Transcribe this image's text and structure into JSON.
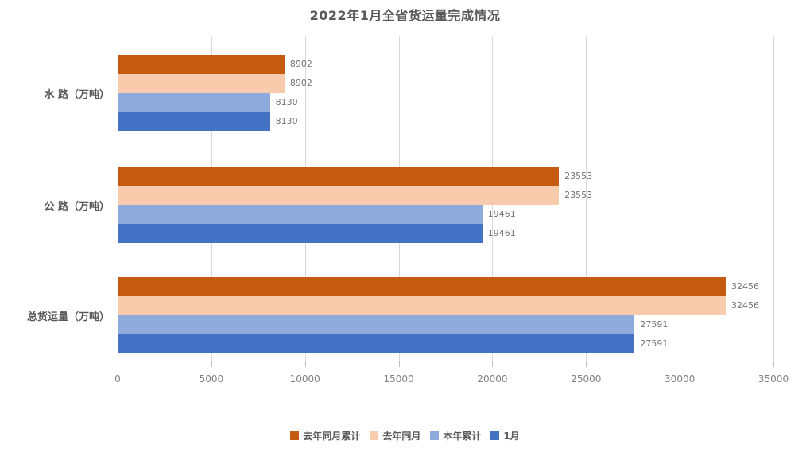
{
  "title": "2022年1月全省货运量完成情况",
  "chart_data": {
    "type": "bar",
    "orientation": "horizontal",
    "title": "2022年1月全省货运量完成情况",
    "categories": [
      "水 路（万吨）",
      "公 路（万吨）",
      "总货运量（万吨）"
    ],
    "series": [
      {
        "name": "去年同月累计",
        "color": "#C55A11",
        "values": [
          8902,
          23553,
          32456
        ]
      },
      {
        "name": "去年同月",
        "color": "#F8CBAD",
        "values": [
          8902,
          23553,
          32456
        ]
      },
      {
        "name": "本年累计",
        "color": "#8FAADC",
        "values": [
          8130,
          19461,
          27591
        ]
      },
      {
        "name": "1月",
        "color": "#4472C4",
        "values": [
          8130,
          19461,
          27591
        ]
      }
    ],
    "x_ticks": [
      0,
      5000,
      10000,
      15000,
      20000,
      25000,
      30000,
      35000
    ],
    "xlim": [
      0,
      35000
    ],
    "grid": true,
    "data_labels": true,
    "legend_position": "bottom"
  },
  "colors": {
    "title_text": "#595959",
    "axis_text": "#808080",
    "data_label_text": "#737373",
    "gridline": "#D9D9D9"
  }
}
